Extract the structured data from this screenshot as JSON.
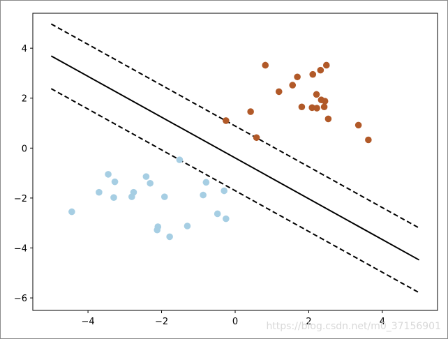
{
  "chart_data": {
    "type": "scatter",
    "title": "",
    "xlabel": "",
    "ylabel": "",
    "xlim": [
      -5.5,
      5.5
    ],
    "ylim": [
      -6.5,
      5.4
    ],
    "xticks": [
      -4,
      -2,
      0,
      2,
      4
    ],
    "yticks": [
      -6,
      -4,
      -2,
      0,
      2,
      4
    ],
    "xtick_labels": [
      "−4",
      "−2",
      "0",
      "2",
      "4"
    ],
    "ytick_labels": [
      "−6",
      "−4",
      "−2",
      "0",
      "2",
      "4"
    ],
    "grid": false,
    "series": [
      {
        "color": "#a6cee3",
        "points": [
          [
            -4.44,
            -2.55
          ],
          [
            -3.7,
            -1.77
          ],
          [
            -3.45,
            -1.05
          ],
          [
            -3.27,
            -1.35
          ],
          [
            -3.3,
            -1.98
          ],
          [
            -2.76,
            -1.77
          ],
          [
            -2.81,
            -1.95
          ],
          [
            -2.42,
            -1.14
          ],
          [
            -2.31,
            -1.41
          ],
          [
            -2.1,
            -3.15
          ],
          [
            -2.12,
            -3.28
          ],
          [
            -1.92,
            -1.95
          ],
          [
            -1.78,
            -3.55
          ],
          [
            -1.51,
            -0.47
          ],
          [
            -1.3,
            -3.12
          ],
          [
            -0.79,
            -1.37
          ],
          [
            -0.87,
            -1.88
          ],
          [
            -0.48,
            -2.63
          ],
          [
            -0.3,
            -1.71
          ],
          [
            -0.25,
            -2.83
          ]
        ]
      },
      {
        "color": "#b15928",
        "points": [
          [
            -0.25,
            1.1
          ],
          [
            0.42,
            1.46
          ],
          [
            0.58,
            0.42
          ],
          [
            0.82,
            3.32
          ],
          [
            1.19,
            2.26
          ],
          [
            1.56,
            2.52
          ],
          [
            1.69,
            2.85
          ],
          [
            1.81,
            1.65
          ],
          [
            2.09,
            1.62
          ],
          [
            2.11,
            2.95
          ],
          [
            2.21,
            2.15
          ],
          [
            2.22,
            1.6
          ],
          [
            2.32,
            3.12
          ],
          [
            2.34,
            1.93
          ],
          [
            2.42,
            1.65
          ],
          [
            2.44,
            1.88
          ],
          [
            2.48,
            3.32
          ],
          [
            2.53,
            1.17
          ],
          [
            3.35,
            0.92
          ],
          [
            3.62,
            0.33
          ]
        ]
      }
    ],
    "lines": [
      {
        "style": "solid",
        "points": [
          [
            -5,
            3.69
          ],
          [
            5,
            -4.48
          ]
        ]
      },
      {
        "style": "dashed",
        "points": [
          [
            -5,
            4.97
          ],
          [
            5,
            -3.2
          ]
        ]
      },
      {
        "style": "dashed",
        "points": [
          [
            -5,
            2.38
          ],
          [
            5,
            -5.79
          ]
        ]
      }
    ]
  },
  "watermark": "https://blog.csdn.net/m0_37156901"
}
